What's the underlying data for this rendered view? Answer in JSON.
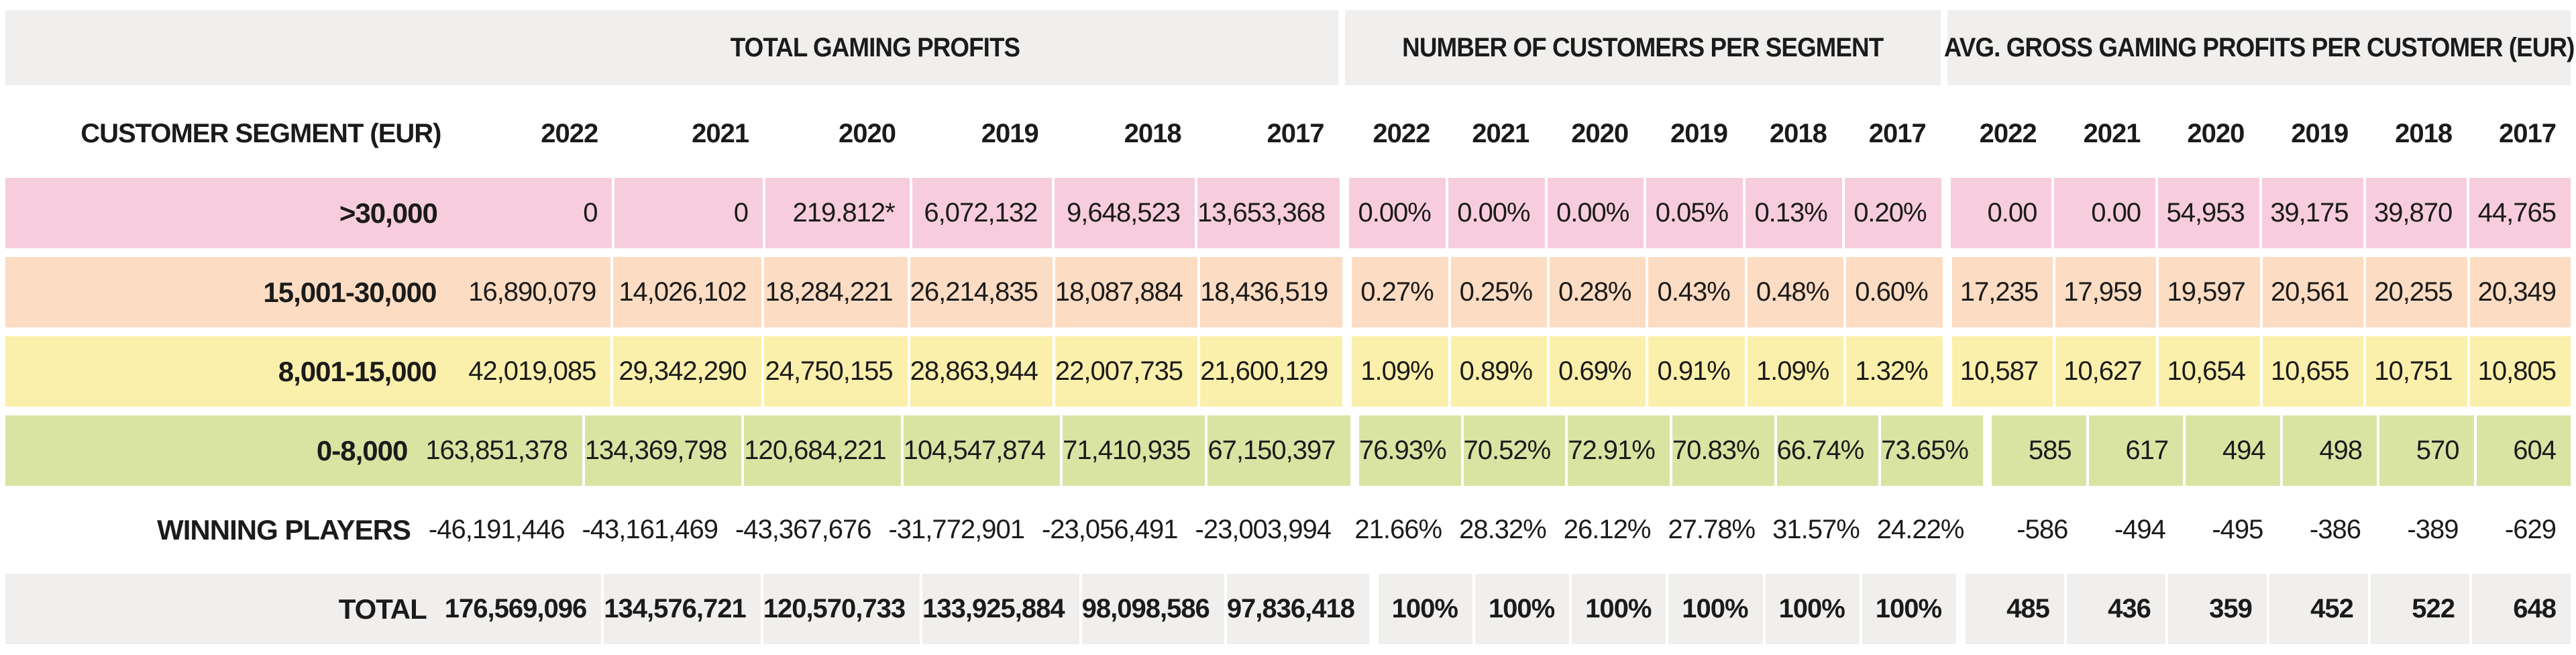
{
  "table": {
    "label_header": "CUSTOMER SEGMENT (EUR)",
    "groups": [
      {
        "title": "TOTAL GAMING PROFITS",
        "years": [
          "2022",
          "2021",
          "2020",
          "2019",
          "2018",
          "2017"
        ]
      },
      {
        "title": "NUMBER OF CUSTOMERS PER SEGMENT",
        "years": [
          "2022",
          "2021",
          "2020",
          "2019",
          "2018",
          "2017"
        ]
      },
      {
        "title": "AVG. GROSS GAMING PROFITS PER CUSTOMER (EUR)",
        "years": [
          "2022",
          "2021",
          "2020",
          "2019",
          "2018",
          "2017"
        ]
      }
    ],
    "rows": [
      {
        "label": ">30,000",
        "color": "#f7cddd",
        "bold": false,
        "g1": [
          "0",
          "0",
          "219.812*",
          "6,072,132",
          "9,648,523",
          "13,653,368"
        ],
        "g2": [
          "0.00%",
          "0.00%",
          "0.00%",
          "0.05%",
          "0.13%",
          "0.20%"
        ],
        "g3": [
          "0.00",
          "0.00",
          "54,953",
          "39,175",
          "39,870",
          "44,765"
        ]
      },
      {
        "label": "15,001-30,000",
        "color": "#fcdcc2",
        "bold": false,
        "g1": [
          "16,890,079",
          "14,026,102",
          "18,284,221",
          "26,214,835",
          "18,087,884",
          "18,436,519"
        ],
        "g2": [
          "0.27%",
          "0.25%",
          "0.28%",
          "0.43%",
          "0.48%",
          "0.60%"
        ],
        "g3": [
          "17,235",
          "17,959",
          "19,597",
          "20,561",
          "20,255",
          "20,349"
        ]
      },
      {
        "label": "8,001-15,000",
        "color": "#fbf0ab",
        "bold": false,
        "g1": [
          "42,019,085",
          "29,342,290",
          "24,750,155",
          "28,863,944",
          "22,007,735",
          "21,600,129"
        ],
        "g2": [
          "1.09%",
          "0.89%",
          "0.69%",
          "0.91%",
          "1.09%",
          "1.32%"
        ],
        "g3": [
          "10,587",
          "10,627",
          "10,654",
          "10,655",
          "10,751",
          "10,805"
        ]
      },
      {
        "label": "0-8,000",
        "color": "#d9e4a3",
        "bold": false,
        "g1": [
          "163,851,378",
          "134,369,798",
          "120,684,221",
          "104,547,874",
          "71,410,935",
          "67,150,397"
        ],
        "g2": [
          "76.93%",
          "70.52%",
          "72.91%",
          "70.83%",
          "66.74%",
          "73.65%"
        ],
        "g3": [
          "585",
          "617",
          "494",
          "498",
          "570",
          "604"
        ]
      },
      {
        "label": "WINNING PLAYERS",
        "color": "#ffffff",
        "bold": false,
        "g1": [
          "-46,191,446",
          "-43,161,469",
          "-43,367,676",
          "-31,772,901",
          "-23,056,491",
          "-23,003,994"
        ],
        "g2": [
          "21.66%",
          "28.32%",
          "26.12%",
          "27.78%",
          "31.57%",
          "24.22%"
        ],
        "g3": [
          "-586",
          "-494",
          "-495",
          "-386",
          "-389",
          "-629"
        ]
      },
      {
        "label": "TOTAL",
        "color": "#f0efed",
        "bold": true,
        "g1": [
          "176,569,096",
          "134,576,721",
          "120,570,733",
          "133,925,884",
          "98,098,586",
          "97,836,418"
        ],
        "g2": [
          "100%",
          "100%",
          "100%",
          "100%",
          "100%",
          "100%"
        ],
        "g3": [
          "485",
          "436",
          "359",
          "452",
          "522",
          "648"
        ]
      }
    ]
  },
  "colors": {
    "header_block_bg": "#f0efed",
    "row_pink": "#f7cddd",
    "row_peach": "#fcdcc2",
    "row_yellow": "#fbf0ab",
    "row_green": "#d9e4a3",
    "row_total_bg": "#f0efed",
    "divider": "#ffffff",
    "text": "#1b1b1b"
  },
  "chart_data": {
    "type": "table",
    "title": "",
    "column_groups": [
      "TOTAL GAMING PROFITS",
      "NUMBER OF CUSTOMERS PER SEGMENT",
      "AVG. GROSS GAMING PROFITS PER CUSTOMER (EUR)"
    ],
    "years": [
      "2022",
      "2021",
      "2020",
      "2019",
      "2018",
      "2017"
    ],
    "row_header": "CUSTOMER SEGMENT (EUR)",
    "rows": [
      {
        "segment": ">30,000",
        "total_gaming_profits": [
          "0",
          "0",
          "219.812*",
          "6,072,132",
          "9,648,523",
          "13,653,368"
        ],
        "customers_per_segment": [
          "0.00%",
          "0.00%",
          "0.00%",
          "0.05%",
          "0.13%",
          "0.20%"
        ],
        "avg_gross_profit_per_customer": [
          "0.00",
          "0.00",
          "54,953",
          "39,175",
          "39,870",
          "44,765"
        ]
      },
      {
        "segment": "15,001-30,000",
        "total_gaming_profits": [
          "16,890,079",
          "14,026,102",
          "18,284,221",
          "26,214,835",
          "18,087,884",
          "18,436,519"
        ],
        "customers_per_segment": [
          "0.27%",
          "0.25%",
          "0.28%",
          "0.43%",
          "0.48%",
          "0.60%"
        ],
        "avg_gross_profit_per_customer": [
          "17,235",
          "17,959",
          "19,597",
          "20,561",
          "20,255",
          "20,349"
        ]
      },
      {
        "segment": "8,001-15,000",
        "total_gaming_profits": [
          "42,019,085",
          "29,342,290",
          "24,750,155",
          "28,863,944",
          "22,007,735",
          "21,600,129"
        ],
        "customers_per_segment": [
          "1.09%",
          "0.89%",
          "0.69%",
          "0.91%",
          "1.09%",
          "1.32%"
        ],
        "avg_gross_profit_per_customer": [
          "10,587",
          "10,627",
          "10,654",
          "10,655",
          "10,751",
          "10,805"
        ]
      },
      {
        "segment": "0-8,000",
        "total_gaming_profits": [
          "163,851,378",
          "134,369,798",
          "120,684,221",
          "104,547,874",
          "71,410,935",
          "67,150,397"
        ],
        "customers_per_segment": [
          "76.93%",
          "70.52%",
          "72.91%",
          "70.83%",
          "66.74%",
          "73.65%"
        ],
        "avg_gross_profit_per_customer": [
          "585",
          "617",
          "494",
          "498",
          "570",
          "604"
        ]
      },
      {
        "segment": "WINNING PLAYERS",
        "total_gaming_profits": [
          "-46,191,446",
          "-43,161,469",
          "-43,367,676",
          "-31,772,901",
          "-23,056,491",
          "-23,003,994"
        ],
        "customers_per_segment": [
          "21.66%",
          "28.32%",
          "26.12%",
          "27.78%",
          "31.57%",
          "24.22%"
        ],
        "avg_gross_profit_per_customer": [
          "-586",
          "-494",
          "-495",
          "-386",
          "-389",
          "-629"
        ]
      },
      {
        "segment": "TOTAL",
        "total_gaming_profits": [
          "176,569,096",
          "134,576,721",
          "120,570,733",
          "133,925,884",
          "98,098,586",
          "97,836,418"
        ],
        "customers_per_segment": [
          "100%",
          "100%",
          "100%",
          "100%",
          "100%",
          "100%"
        ],
        "avg_gross_profit_per_customer": [
          "485",
          "436",
          "359",
          "452",
          "522",
          "648"
        ]
      }
    ]
  }
}
